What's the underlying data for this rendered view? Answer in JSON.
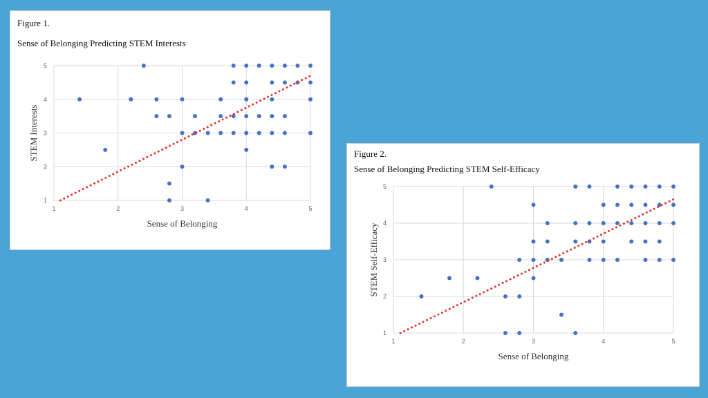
{
  "colors": {
    "background": "#4ba4d8",
    "point": "#4472c4",
    "trend": "#e0342a",
    "grid": "#d9d9d9"
  },
  "chart_data": [
    {
      "type": "scatter",
      "figure_label": "Figure 1.",
      "title": "Sense of Belonging Predicting STEM Interests",
      "xlabel": "Sense of Belonging",
      "ylabel": "STEM Interests",
      "xlim": [
        1,
        5
      ],
      "ylim": [
        1,
        5
      ],
      "xticks": [
        "1",
        "2",
        "3",
        "4",
        "5"
      ],
      "yticks": [
        "1",
        "2",
        "3",
        "4",
        "5"
      ],
      "grid": true,
      "points": [
        [
          2.4,
          5
        ],
        [
          3.8,
          5
        ],
        [
          4.0,
          5
        ],
        [
          4.2,
          5
        ],
        [
          4.4,
          5
        ],
        [
          4.6,
          5
        ],
        [
          4.8,
          5
        ],
        [
          5.0,
          5
        ],
        [
          3.8,
          4.5
        ],
        [
          4.0,
          4.5
        ],
        [
          4.4,
          4.5
        ],
        [
          4.6,
          4.5
        ],
        [
          4.8,
          4.5
        ],
        [
          5.0,
          4.5
        ],
        [
          1.4,
          4
        ],
        [
          2.2,
          4
        ],
        [
          2.6,
          4
        ],
        [
          3.0,
          4
        ],
        [
          3.6,
          4
        ],
        [
          4.0,
          4
        ],
        [
          4.4,
          4
        ],
        [
          5.0,
          4
        ],
        [
          2.6,
          3.5
        ],
        [
          2.8,
          3.5
        ],
        [
          3.2,
          3.5
        ],
        [
          3.6,
          3.5
        ],
        [
          3.8,
          3.5
        ],
        [
          4.0,
          3.5
        ],
        [
          4.2,
          3.5
        ],
        [
          4.4,
          3.5
        ],
        [
          4.6,
          3.5
        ],
        [
          3.0,
          3
        ],
        [
          3.2,
          3
        ],
        [
          3.4,
          3
        ],
        [
          3.6,
          3
        ],
        [
          3.8,
          3
        ],
        [
          4.0,
          3
        ],
        [
          4.2,
          3
        ],
        [
          4.4,
          3
        ],
        [
          4.6,
          3
        ],
        [
          5.0,
          3
        ],
        [
          1.8,
          2.5
        ],
        [
          4.0,
          2.5
        ],
        [
          3.0,
          2
        ],
        [
          4.4,
          2
        ],
        [
          4.6,
          2
        ],
        [
          2.8,
          1.5
        ],
        [
          2.8,
          1
        ],
        [
          3.4,
          1
        ]
      ],
      "trendline": [
        [
          1.1,
          1.0
        ],
        [
          5.0,
          4.7
        ]
      ]
    },
    {
      "type": "scatter",
      "figure_label": "Figure 2.",
      "title": "Sense of Belonging Predicting STEM Self-Efficacy",
      "xlabel": "Sense of Belonging",
      "ylabel": "STEM Self-Efficacy",
      "xlim": [
        1,
        5
      ],
      "ylim": [
        1,
        5
      ],
      "xticks": [
        "1",
        "2",
        "3",
        "4",
        "5"
      ],
      "yticks": [
        "1",
        "2",
        "3",
        "4",
        "5"
      ],
      "grid": true,
      "points": [
        [
          2.4,
          5
        ],
        [
          3.6,
          5
        ],
        [
          3.8,
          5
        ],
        [
          4.2,
          5
        ],
        [
          4.4,
          5
        ],
        [
          4.6,
          5
        ],
        [
          4.8,
          5
        ],
        [
          5.0,
          5
        ],
        [
          3.0,
          4.5
        ],
        [
          4.0,
          4.5
        ],
        [
          4.2,
          4.5
        ],
        [
          4.4,
          4.5
        ],
        [
          4.6,
          4.5
        ],
        [
          4.8,
          4.5
        ],
        [
          5.0,
          4.5
        ],
        [
          3.2,
          4
        ],
        [
          3.6,
          4
        ],
        [
          3.8,
          4
        ],
        [
          4.0,
          4
        ],
        [
          4.2,
          4
        ],
        [
          4.4,
          4
        ],
        [
          4.6,
          4
        ],
        [
          4.8,
          4
        ],
        [
          5.0,
          4
        ],
        [
          3.0,
          3.5
        ],
        [
          3.2,
          3.5
        ],
        [
          3.6,
          3.5
        ],
        [
          3.8,
          3.5
        ],
        [
          4.0,
          3.5
        ],
        [
          4.4,
          3.5
        ],
        [
          4.6,
          3.5
        ],
        [
          4.8,
          3.5
        ],
        [
          2.8,
          3
        ],
        [
          3.0,
          3
        ],
        [
          3.2,
          3
        ],
        [
          3.4,
          3
        ],
        [
          3.8,
          3
        ],
        [
          4.0,
          3
        ],
        [
          4.2,
          3
        ],
        [
          4.6,
          3
        ],
        [
          4.8,
          3
        ],
        [
          5.0,
          3
        ],
        [
          1.8,
          2.5
        ],
        [
          2.2,
          2.5
        ],
        [
          3.0,
          2.5
        ],
        [
          1.4,
          2
        ],
        [
          2.6,
          2
        ],
        [
          2.8,
          2
        ],
        [
          3.4,
          1.5
        ],
        [
          2.6,
          1
        ],
        [
          2.8,
          1
        ],
        [
          3.6,
          1
        ]
      ],
      "trendline": [
        [
          1.1,
          1.0
        ],
        [
          5.0,
          4.65
        ]
      ]
    }
  ]
}
